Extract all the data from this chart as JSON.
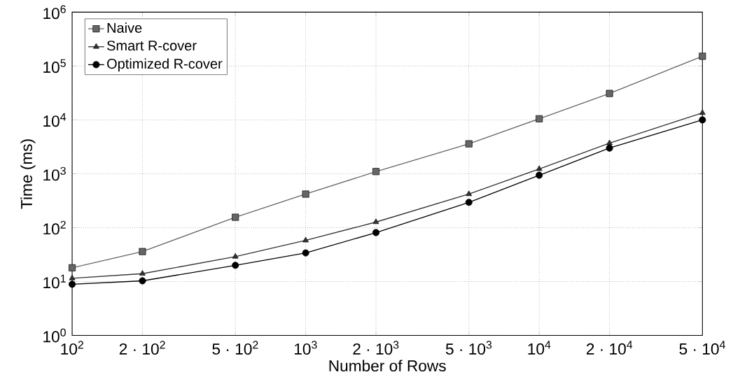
{
  "chart_data": {
    "type": "line",
    "xlabel": "Number of Rows",
    "ylabel": "Time (ms)",
    "log": "xy",
    "grid": true,
    "legend": "top left",
    "line_style": "solid",
    "x": [
      100,
      200,
      500,
      1000,
      2000,
      5000,
      10000,
      20000,
      50000
    ],
    "xlim": [
      100,
      50000
    ],
    "xticks": [
      {
        "value": 100,
        "label": "10$^{2}$"
      },
      {
        "value": 200,
        "label": "2 · 10$^{2}$"
      },
      {
        "value": 500,
        "label": "5 · 10$^{2}$"
      },
      {
        "value": 1000,
        "label": "10$^{3}$"
      },
      {
        "value": 2000,
        "label": "2 · 10$^{3}$"
      },
      {
        "value": 5000,
        "label": "5 · 10$^{3}$"
      },
      {
        "value": 10000,
        "label": "10$^{4}$"
      },
      {
        "value": 20000,
        "label": "2 · 10$^{4}$"
      },
      {
        "value": 50000,
        "label": "5 · 10$^{4}$"
      }
    ],
    "ylim": [
      1,
      1000000
    ],
    "yticks": [
      {
        "value": 1,
        "label": "10$^{0}$"
      },
      {
        "value": 10,
        "label": "10$^{1}$"
      },
      {
        "value": 100,
        "label": "10$^{2}$"
      },
      {
        "value": 1000,
        "label": "10$^{3}$"
      },
      {
        "value": 10000,
        "label": "10$^{4}$"
      },
      {
        "value": 100000,
        "label": "10$^{5}$"
      },
      {
        "value": 1000000,
        "label": "10$^{6}$"
      }
    ],
    "series": [
      {
        "name": "Naive",
        "color": "#666666",
        "marker": "square",
        "values": [
          18,
          36,
          156,
          420,
          1100,
          3600,
          10500,
          31000,
          152000
        ]
      },
      {
        "name": "Smart R-cover",
        "color": "#333333",
        "marker": "triangle",
        "values": [
          11.5,
          14,
          29,
          58,
          127,
          420,
          1230,
          3700,
          13500
        ]
      },
      {
        "name": "Optimized R-cover",
        "color": "#000000",
        "marker": "circle",
        "values": [
          8.9,
          10.3,
          20,
          34,
          81,
          295,
          940,
          3000,
          10000
        ]
      }
    ]
  }
}
